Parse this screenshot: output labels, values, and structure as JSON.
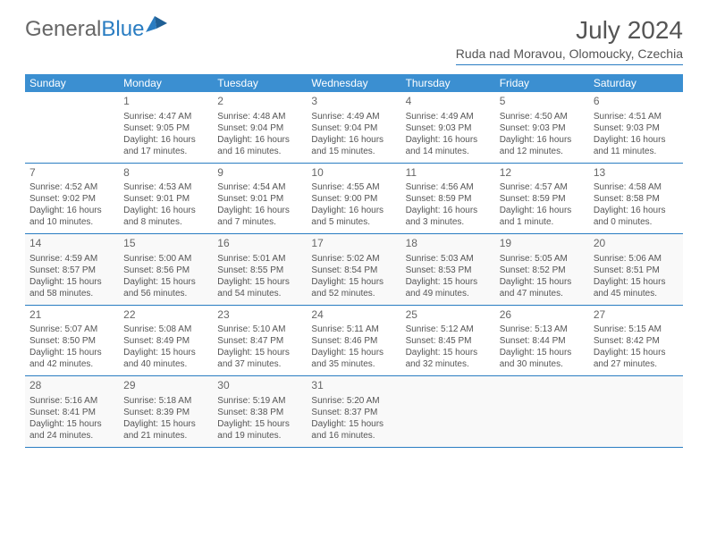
{
  "brand": {
    "part1": "General",
    "part2": "Blue"
  },
  "title": "July 2024",
  "location": "Ruda nad Moravou, Olomoucky, Czechia",
  "colors": {
    "header_bg": "#3b8fd1",
    "accent": "#2a7dc2",
    "text": "#555555",
    "alt_row": "#f9f9f9",
    "white": "#ffffff"
  },
  "days_of_week": [
    "Sunday",
    "Monday",
    "Tuesday",
    "Wednesday",
    "Thursday",
    "Friday",
    "Saturday"
  ],
  "weeks": [
    [
      {
        "num": "",
        "sunrise": "",
        "sunset": "",
        "daylight": ""
      },
      {
        "num": "1",
        "sunrise": "Sunrise: 4:47 AM",
        "sunset": "Sunset: 9:05 PM",
        "daylight": "Daylight: 16 hours and 17 minutes."
      },
      {
        "num": "2",
        "sunrise": "Sunrise: 4:48 AM",
        "sunset": "Sunset: 9:04 PM",
        "daylight": "Daylight: 16 hours and 16 minutes."
      },
      {
        "num": "3",
        "sunrise": "Sunrise: 4:49 AM",
        "sunset": "Sunset: 9:04 PM",
        "daylight": "Daylight: 16 hours and 15 minutes."
      },
      {
        "num": "4",
        "sunrise": "Sunrise: 4:49 AM",
        "sunset": "Sunset: 9:03 PM",
        "daylight": "Daylight: 16 hours and 14 minutes."
      },
      {
        "num": "5",
        "sunrise": "Sunrise: 4:50 AM",
        "sunset": "Sunset: 9:03 PM",
        "daylight": "Daylight: 16 hours and 12 minutes."
      },
      {
        "num": "6",
        "sunrise": "Sunrise: 4:51 AM",
        "sunset": "Sunset: 9:03 PM",
        "daylight": "Daylight: 16 hours and 11 minutes."
      }
    ],
    [
      {
        "num": "7",
        "sunrise": "Sunrise: 4:52 AM",
        "sunset": "Sunset: 9:02 PM",
        "daylight": "Daylight: 16 hours and 10 minutes."
      },
      {
        "num": "8",
        "sunrise": "Sunrise: 4:53 AM",
        "sunset": "Sunset: 9:01 PM",
        "daylight": "Daylight: 16 hours and 8 minutes."
      },
      {
        "num": "9",
        "sunrise": "Sunrise: 4:54 AM",
        "sunset": "Sunset: 9:01 PM",
        "daylight": "Daylight: 16 hours and 7 minutes."
      },
      {
        "num": "10",
        "sunrise": "Sunrise: 4:55 AM",
        "sunset": "Sunset: 9:00 PM",
        "daylight": "Daylight: 16 hours and 5 minutes."
      },
      {
        "num": "11",
        "sunrise": "Sunrise: 4:56 AM",
        "sunset": "Sunset: 8:59 PM",
        "daylight": "Daylight: 16 hours and 3 minutes."
      },
      {
        "num": "12",
        "sunrise": "Sunrise: 4:57 AM",
        "sunset": "Sunset: 8:59 PM",
        "daylight": "Daylight: 16 hours and 1 minute."
      },
      {
        "num": "13",
        "sunrise": "Sunrise: 4:58 AM",
        "sunset": "Sunset: 8:58 PM",
        "daylight": "Daylight: 16 hours and 0 minutes."
      }
    ],
    [
      {
        "num": "14",
        "sunrise": "Sunrise: 4:59 AM",
        "sunset": "Sunset: 8:57 PM",
        "daylight": "Daylight: 15 hours and 58 minutes."
      },
      {
        "num": "15",
        "sunrise": "Sunrise: 5:00 AM",
        "sunset": "Sunset: 8:56 PM",
        "daylight": "Daylight: 15 hours and 56 minutes."
      },
      {
        "num": "16",
        "sunrise": "Sunrise: 5:01 AM",
        "sunset": "Sunset: 8:55 PM",
        "daylight": "Daylight: 15 hours and 54 minutes."
      },
      {
        "num": "17",
        "sunrise": "Sunrise: 5:02 AM",
        "sunset": "Sunset: 8:54 PM",
        "daylight": "Daylight: 15 hours and 52 minutes."
      },
      {
        "num": "18",
        "sunrise": "Sunrise: 5:03 AM",
        "sunset": "Sunset: 8:53 PM",
        "daylight": "Daylight: 15 hours and 49 minutes."
      },
      {
        "num": "19",
        "sunrise": "Sunrise: 5:05 AM",
        "sunset": "Sunset: 8:52 PM",
        "daylight": "Daylight: 15 hours and 47 minutes."
      },
      {
        "num": "20",
        "sunrise": "Sunrise: 5:06 AM",
        "sunset": "Sunset: 8:51 PM",
        "daylight": "Daylight: 15 hours and 45 minutes."
      }
    ],
    [
      {
        "num": "21",
        "sunrise": "Sunrise: 5:07 AM",
        "sunset": "Sunset: 8:50 PM",
        "daylight": "Daylight: 15 hours and 42 minutes."
      },
      {
        "num": "22",
        "sunrise": "Sunrise: 5:08 AM",
        "sunset": "Sunset: 8:49 PM",
        "daylight": "Daylight: 15 hours and 40 minutes."
      },
      {
        "num": "23",
        "sunrise": "Sunrise: 5:10 AM",
        "sunset": "Sunset: 8:47 PM",
        "daylight": "Daylight: 15 hours and 37 minutes."
      },
      {
        "num": "24",
        "sunrise": "Sunrise: 5:11 AM",
        "sunset": "Sunset: 8:46 PM",
        "daylight": "Daylight: 15 hours and 35 minutes."
      },
      {
        "num": "25",
        "sunrise": "Sunrise: 5:12 AM",
        "sunset": "Sunset: 8:45 PM",
        "daylight": "Daylight: 15 hours and 32 minutes."
      },
      {
        "num": "26",
        "sunrise": "Sunrise: 5:13 AM",
        "sunset": "Sunset: 8:44 PM",
        "daylight": "Daylight: 15 hours and 30 minutes."
      },
      {
        "num": "27",
        "sunrise": "Sunrise: 5:15 AM",
        "sunset": "Sunset: 8:42 PM",
        "daylight": "Daylight: 15 hours and 27 minutes."
      }
    ],
    [
      {
        "num": "28",
        "sunrise": "Sunrise: 5:16 AM",
        "sunset": "Sunset: 8:41 PM",
        "daylight": "Daylight: 15 hours and 24 minutes."
      },
      {
        "num": "29",
        "sunrise": "Sunrise: 5:18 AM",
        "sunset": "Sunset: 8:39 PM",
        "daylight": "Daylight: 15 hours and 21 minutes."
      },
      {
        "num": "30",
        "sunrise": "Sunrise: 5:19 AM",
        "sunset": "Sunset: 8:38 PM",
        "daylight": "Daylight: 15 hours and 19 minutes."
      },
      {
        "num": "31",
        "sunrise": "Sunrise: 5:20 AM",
        "sunset": "Sunset: 8:37 PM",
        "daylight": "Daylight: 15 hours and 16 minutes."
      },
      {
        "num": "",
        "sunrise": "",
        "sunset": "",
        "daylight": ""
      },
      {
        "num": "",
        "sunrise": "",
        "sunset": "",
        "daylight": ""
      },
      {
        "num": "",
        "sunrise": "",
        "sunset": "",
        "daylight": ""
      }
    ]
  ]
}
